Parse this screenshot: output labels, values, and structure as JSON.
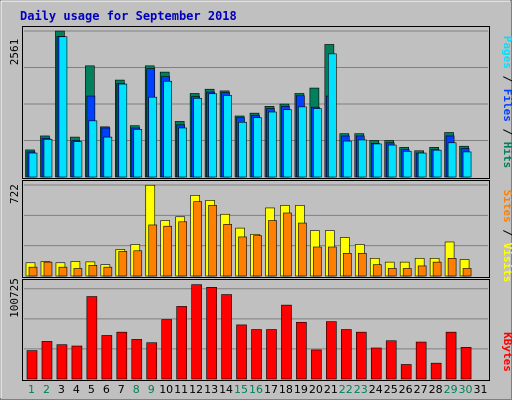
{
  "colors": {
    "background": "#c0c0c0",
    "panel_border": "#000000",
    "gridline": "#808080",
    "hits": "#00805c",
    "files": "#0040ff",
    "pages": "#00e0ff",
    "visits": "#ffff00",
    "sites": "#ff8000",
    "kbytes": "#ff0000",
    "weekend_label": "#00805c",
    "weekday_label": "#000000",
    "title": "#0000c0"
  },
  "chart_data": {
    "type": "bar",
    "title": "Daily usage for September 2018",
    "categories": [
      "1",
      "2",
      "3",
      "4",
      "5",
      "6",
      "7",
      "8",
      "9",
      "10",
      "11",
      "12",
      "13",
      "14",
      "15",
      "16",
      "17",
      "18",
      "19",
      "20",
      "21",
      "22",
      "23",
      "24",
      "25",
      "26",
      "27",
      "28",
      "29",
      "30",
      "31"
    ],
    "weekend_days": [
      "1",
      "2",
      "8",
      "9",
      "15",
      "16",
      "22",
      "23",
      "29",
      "30"
    ],
    "panels": [
      {
        "id": "usage",
        "y_tick_label": "2561",
        "y_tick_value": 2561,
        "ylim": [
          0,
          2561
        ],
        "side_legend": [
          {
            "text": "Pages",
            "color": "#00e0ff"
          },
          {
            "text": " / ",
            "color": "#000000"
          },
          {
            "text": "Files",
            "color": "#0040ff"
          },
          {
            "text": " / ",
            "color": "#000000"
          },
          {
            "text": "Hits",
            "color": "#00805c"
          }
        ],
        "series": [
          {
            "name": "Hits",
            "values": [
              475,
              720,
              2560,
              700,
              1950,
              880,
              1700,
              900,
              1950,
              1840,
              975,
              1465,
              1540,
              1510,
              1070,
              1120,
              1240,
              1280,
              1465,
              1560,
              2325,
              760,
              760,
              640,
              640,
              520,
              460,
              520,
              780,
              540,
              0
            ]
          },
          {
            "name": "Files",
            "values": [
              440,
              680,
              2465,
              640,
              1420,
              860,
              1640,
              860,
              1900,
              1760,
              915,
              1410,
              1490,
              1480,
              1040,
              1080,
              1200,
              1240,
              1425,
              1225,
              1420,
              720,
              720,
              590,
              600,
              480,
              420,
              480,
              720,
              500,
              0
            ]
          },
          {
            "name": "Pages",
            "values": [
              420,
              660,
              2460,
              620,
              985,
              700,
              1630,
              835,
              1400,
              1680,
              860,
              1380,
              1460,
              1430,
              960,
              1040,
              1140,
              1180,
              1230,
              1200,
              2160,
              630,
              650,
              580,
              560,
              450,
              420,
              470,
              600,
              440,
              0
            ]
          }
        ]
      },
      {
        "id": "visitors",
        "y_tick_label": "722",
        "y_tick_value": 722,
        "ylim": [
          0,
          722
        ],
        "side_legend": [
          {
            "text": "Sites",
            "color": "#ff8000"
          },
          {
            "text": " / ",
            "color": "#000000"
          },
          {
            "text": "Visits",
            "color": "#ffff00"
          }
        ],
        "series": [
          {
            "name": "Visits",
            "values": [
              105,
              115,
              105,
              115,
              112,
              90,
              210,
              250,
              720,
              440,
              470,
              640,
              600,
              490,
              380,
              330,
              540,
              560,
              560,
              360,
              360,
              305,
              250,
              140,
              110,
              110,
              140,
              140,
              270,
              130,
              0
            ]
          },
          {
            "name": "Sites",
            "values": [
              70,
              110,
              70,
              60,
              85,
              70,
              195,
              200,
              405,
              395,
              430,
              590,
              560,
              410,
              310,
              320,
              440,
              500,
              420,
              230,
              230,
              180,
              180,
              90,
              60,
              60,
              80,
              110,
              140,
              60,
              0
            ]
          }
        ]
      },
      {
        "id": "kbytes",
        "y_tick_label": "100725",
        "y_tick_value": 100725,
        "ylim": [
          0,
          144000
        ],
        "side_legend": [
          {
            "text": "KBytes",
            "color": "#ff0000"
          }
        ],
        "series": [
          {
            "name": "KBytes",
            "values": [
              43000,
              57000,
              52000,
              50000,
              125000,
              66000,
              71000,
              60000,
              55000,
              90000,
              110000,
              143000,
              139000,
              128000,
              82000,
              75000,
              75000,
              112000,
              86000,
              44000,
              87000,
              75000,
              71000,
              47000,
              58000,
              22000,
              56000,
              24000,
              71000,
              48000,
              0
            ]
          }
        ]
      }
    ]
  }
}
